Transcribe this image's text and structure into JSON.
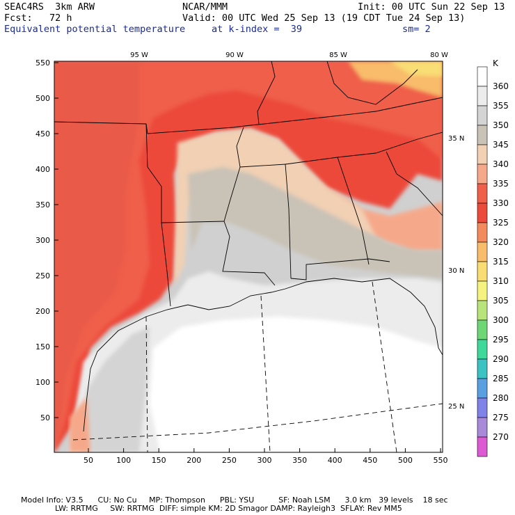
{
  "header": {
    "model": "SEAC4RS  3km ARW",
    "org": "NCAR/MMM",
    "init": "Init: 00 UTC Sun 22 Sep 13",
    "fcst": "Fcst:   72 h",
    "valid": "Valid: 00 UTC Wed 25 Sep 13 (19 CDT Tue 24 Sep 13)",
    "field": "Equivalent potential temperature",
    "level": "at k-index =  39",
    "smooth": "sm= 2"
  },
  "axes": {
    "y_ticks": [
      "550",
      "500",
      "450",
      "400",
      "350",
      "300",
      "250",
      "200",
      "150",
      "100",
      "50"
    ],
    "x_ticks": [
      "50",
      "100",
      "150",
      "200",
      "250",
      "300",
      "350",
      "400",
      "450",
      "500",
      "550"
    ],
    "lon_labels": [
      "95 W",
      "90 W",
      "85 W",
      "80 W"
    ],
    "lat_labels": [
      "35 N",
      "30 N",
      "25 N"
    ]
  },
  "colorbar": {
    "unit": "K",
    "levels": [
      {
        "v": "360",
        "c": "#ffffff"
      },
      {
        "v": "355",
        "c": "#ececec"
      },
      {
        "v": "350",
        "c": "#d4d4d4"
      },
      {
        "v": "345",
        "c": "#c9c2b6"
      },
      {
        "v": "340",
        "c": "#f1d0b4"
      },
      {
        "v": "335",
        "c": "#f6a98a"
      },
      {
        "v": "330",
        "c": "#ef5f4a"
      },
      {
        "v": "325",
        "c": "#ec4a3a"
      },
      {
        "v": "320",
        "c": "#f28a5e"
      },
      {
        "v": "315",
        "c": "#f8bc6a"
      },
      {
        "v": "310",
        "c": "#f9dd74"
      },
      {
        "v": "305",
        "c": "#f6f280"
      },
      {
        "v": "300",
        "c": "#b9e47c"
      },
      {
        "v": "295",
        "c": "#6fd676"
      },
      {
        "v": "290",
        "c": "#3ed99a"
      },
      {
        "v": "285",
        "c": "#3cc2c2"
      },
      {
        "v": "280",
        "c": "#5aa0e0"
      },
      {
        "v": "275",
        "c": "#7f82e6"
      },
      {
        "v": "270",
        "c": "#a98ad8"
      },
      {
        "v": "",
        "c": "#dc5ad2"
      }
    ]
  },
  "footer": {
    "line1": "Model Info: V3.5      CU: No Cu     MP: Thompson      PBL: YSU          SF: Noah LSM      3.0 km   39 levels    18 sec",
    "line2": "              LW: RRTMG     SW: RRTMG  DIFF: simple KM: 2D Smagor DAMP: Rayleigh3  SFLAY: Rev MM5"
  }
}
